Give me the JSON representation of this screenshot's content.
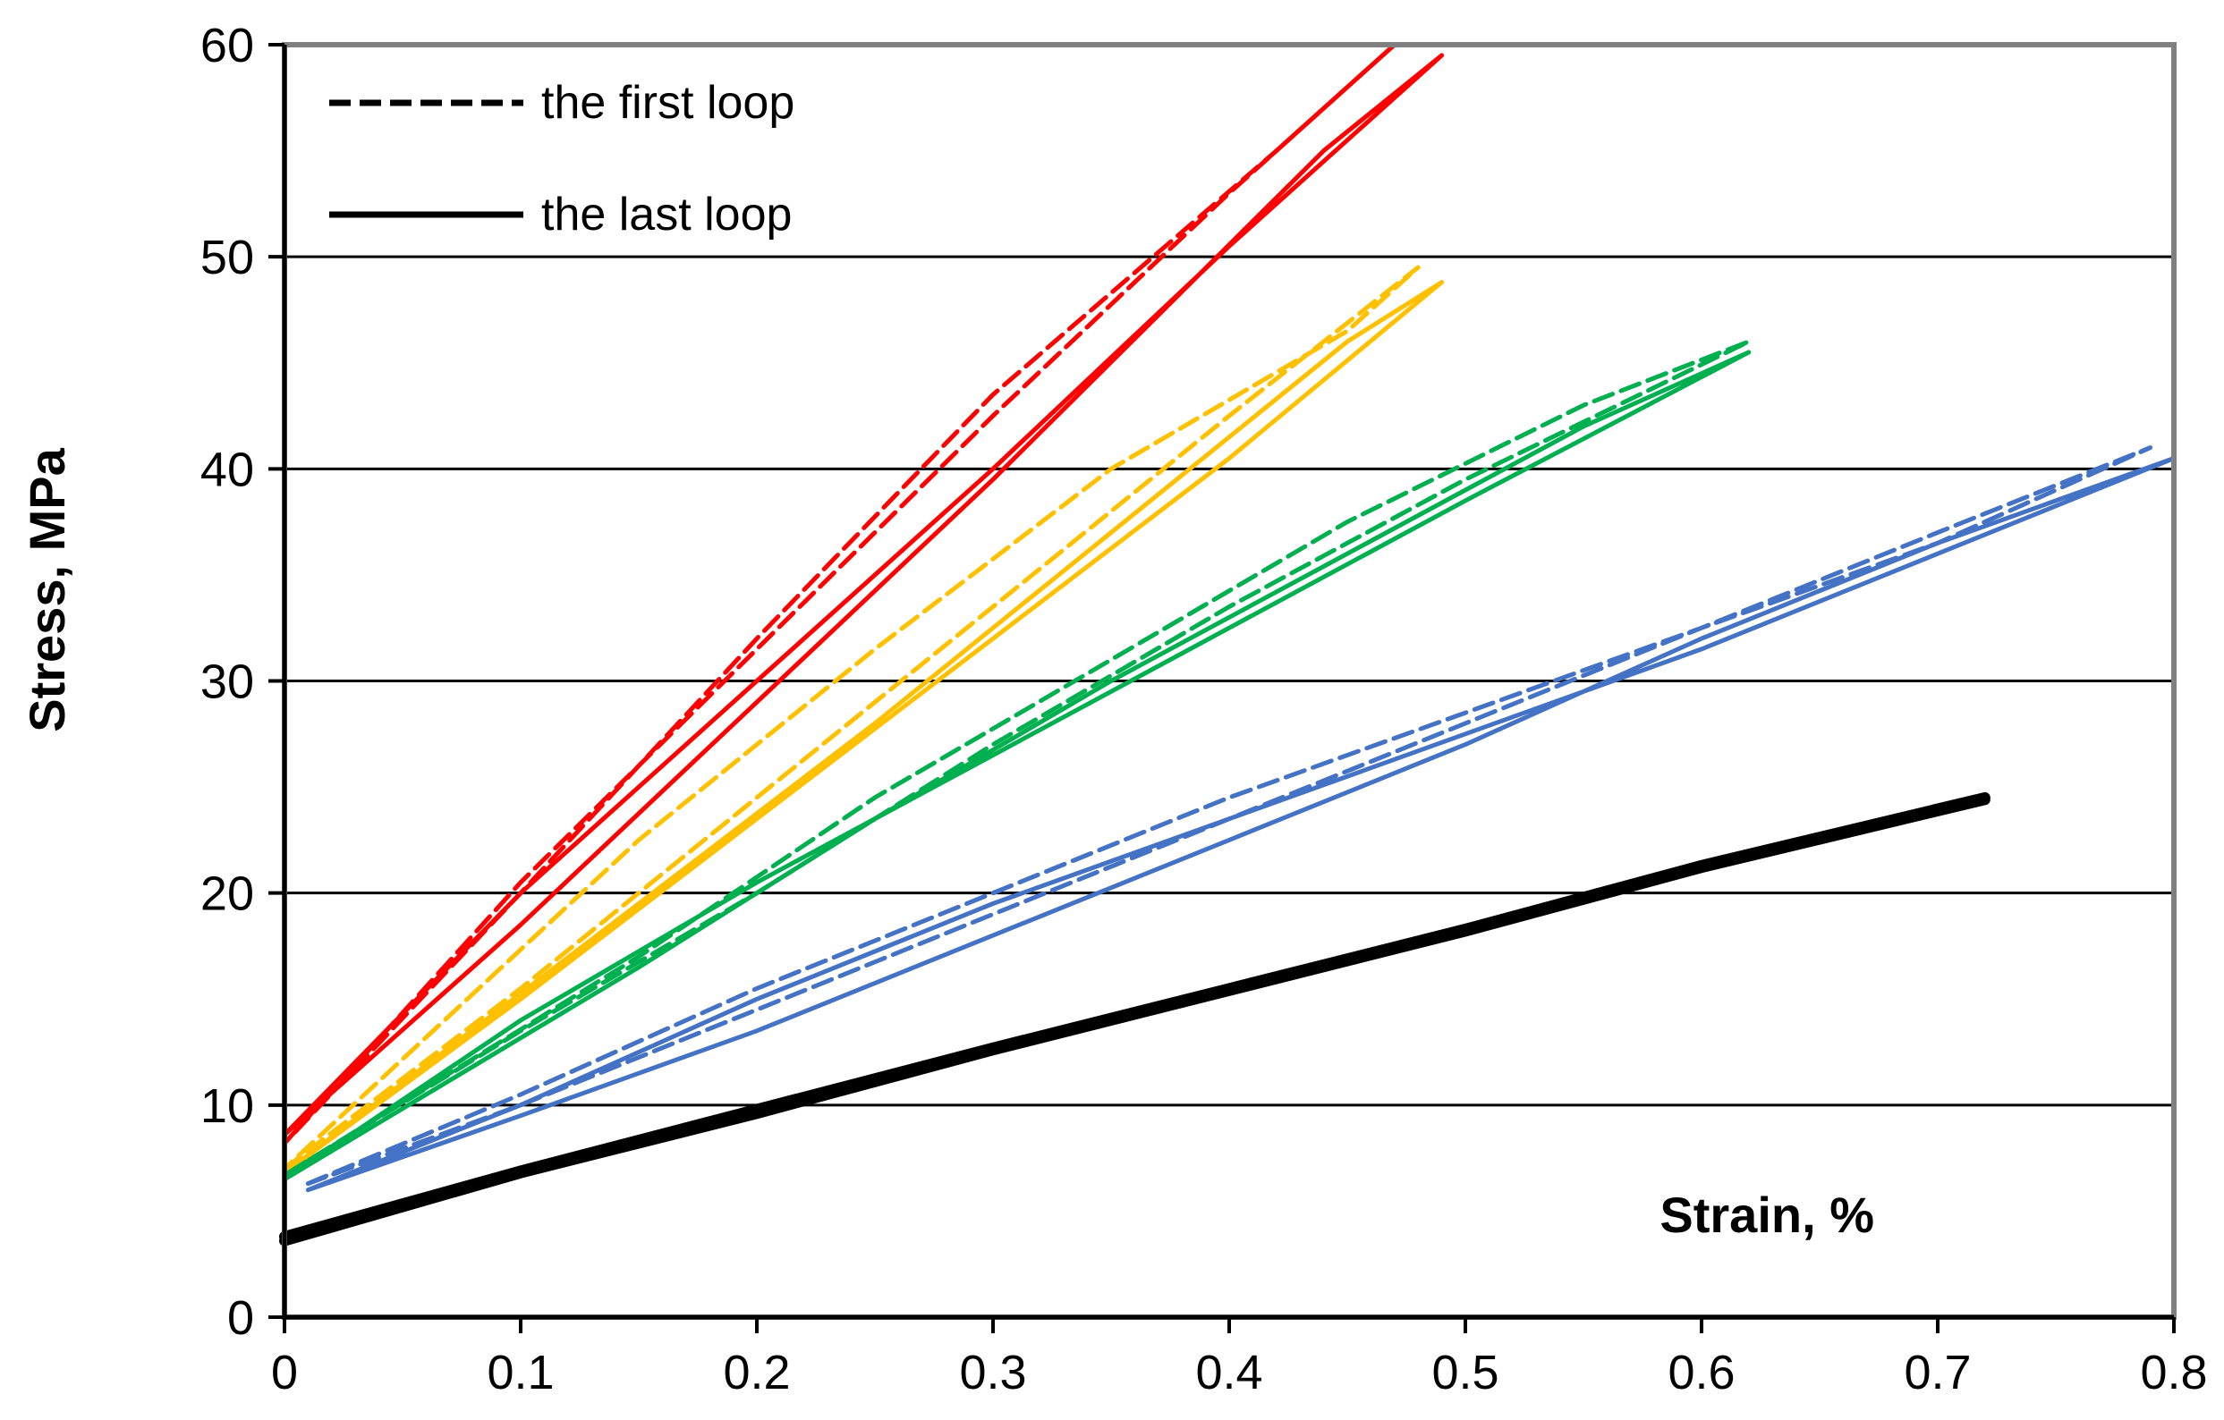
{
  "chart_data": {
    "type": "line",
    "title": "",
    "xlabel": "Strain, %",
    "ylabel": "Stress,  MPa",
    "xlim": [
      0,
      0.8
    ],
    "ylim": [
      0,
      60
    ],
    "xticks": [
      "0",
      "0.1",
      "0.2",
      "0.3",
      "0.4",
      "0.5",
      "0.6",
      "0.7",
      "0.8"
    ],
    "yticks": [
      "0",
      "10",
      "20",
      "30",
      "40",
      "50",
      "60"
    ],
    "xtick_values": [
      0,
      0.1,
      0.2,
      0.3,
      0.4,
      0.5,
      0.6,
      0.7,
      0.8
    ],
    "ytick_values": [
      0,
      10,
      20,
      30,
      40,
      50,
      60
    ],
    "grid": "horizontal",
    "legend": {
      "position": "top-left",
      "entries": [
        {
          "label": "the first loop",
          "style": "dashed"
        },
        {
          "label": "the last loop",
          "style": "solid"
        }
      ]
    },
    "series": [
      {
        "name": "red first loop",
        "color": "#ff0000",
        "style": "dashed",
        "x": [
          0,
          0.1,
          0.2,
          0.3,
          0.4,
          0.47,
          0.42,
          0.3,
          0.2,
          0.1,
          0
        ],
        "y": [
          8.2,
          20.5,
          31.5,
          42.5,
          53,
          60,
          55,
          43.5,
          32,
          20,
          8.2
        ]
      },
      {
        "name": "red last loop",
        "color": "#ff0000",
        "style": "solid",
        "x": [
          0,
          0.1,
          0.2,
          0.3,
          0.4,
          0.49,
          0.44,
          0.3,
          0.2,
          0.1,
          0
        ],
        "y": [
          8.6,
          20,
          30,
          40,
          50.5,
          59.5,
          55,
          39.5,
          29,
          18.5,
          8.6
        ]
      },
      {
        "name": "yellow first loop",
        "color": "#ffc000",
        "style": "dashed",
        "x": [
          0,
          0.1,
          0.2,
          0.3,
          0.4,
          0.48,
          0.45,
          0.35,
          0.25,
          0.15,
          0
        ],
        "y": [
          7,
          15.5,
          24.5,
          33.5,
          42.5,
          49.5,
          46.5,
          40,
          31.5,
          22.5,
          7
        ]
      },
      {
        "name": "yellow last loop",
        "color": "#ffc000",
        "style": "solid",
        "x": [
          0,
          0.1,
          0.2,
          0.3,
          0.4,
          0.49,
          0.45,
          0.35,
          0.25,
          0.15,
          0
        ],
        "y": [
          6.8,
          15,
          23.5,
          32,
          40.5,
          48.8,
          46,
          37,
          28,
          19.5,
          6.8
        ]
      },
      {
        "name": "green first loop",
        "color": "#00b050",
        "style": "dashed",
        "x": [
          0,
          0.1,
          0.2,
          0.3,
          0.4,
          0.5,
          0.62,
          0.55,
          0.45,
          0.35,
          0.25,
          0.15,
          0
        ],
        "y": [
          6.7,
          13.5,
          20,
          27,
          33.5,
          39.5,
          46,
          43,
          37.5,
          31,
          24.5,
          17,
          6.7
        ]
      },
      {
        "name": "green last loop",
        "color": "#00b050",
        "style": "solid",
        "x": [
          0,
          0.1,
          0.2,
          0.3,
          0.4,
          0.5,
          0.62,
          0.55,
          0.45,
          0.35,
          0.25,
          0.15,
          0
        ],
        "y": [
          6.5,
          14,
          20.5,
          26.5,
          32.5,
          38.5,
          45.5,
          42,
          36,
          30,
          23.5,
          16.5,
          6.5
        ]
      },
      {
        "name": "blue first loop",
        "color": "#4472c4",
        "style": "dashed",
        "x": [
          0.01,
          0.1,
          0.2,
          0.3,
          0.4,
          0.5,
          0.6,
          0.7,
          0.79,
          0.7,
          0.6,
          0.5,
          0.4,
          0.3,
          0.2,
          0.1,
          0.01
        ],
        "y": [
          6.3,
          10.5,
          15.5,
          20,
          24.5,
          28.5,
          32.5,
          37,
          41,
          36.5,
          32.5,
          28,
          23.5,
          19,
          14.5,
          10,
          6.3
        ]
      },
      {
        "name": "blue last loop",
        "color": "#4472c4",
        "style": "solid",
        "x": [
          0.01,
          0.1,
          0.2,
          0.3,
          0.4,
          0.5,
          0.6,
          0.7,
          0.8,
          0.7,
          0.6,
          0.5,
          0.4,
          0.3,
          0.2,
          0.1,
          0.01
        ],
        "y": [
          6,
          10,
          15,
          19.5,
          23.5,
          27.5,
          31.5,
          36,
          40.5,
          36.5,
          32,
          27,
          22.5,
          18,
          13.5,
          9.5,
          6
        ]
      },
      {
        "name": "black first loop",
        "color": "#000000",
        "style": "dashed",
        "x": [
          0,
          0.1,
          0.2,
          0.3,
          0.4,
          0.5,
          0.6,
          0.72
        ],
        "y": [
          3.6,
          6.8,
          9.6,
          12.6,
          15.4,
          18.2,
          21.2,
          24.4
        ]
      },
      {
        "name": "black last loop",
        "color": "#000000",
        "style": "solid",
        "x": [
          0,
          0.1,
          0.2,
          0.3,
          0.4,
          0.5,
          0.6,
          0.72
        ],
        "y": [
          3.8,
          6.9,
          9.8,
          12.7,
          15.5,
          18.3,
          21.3,
          24.5
        ]
      }
    ]
  }
}
